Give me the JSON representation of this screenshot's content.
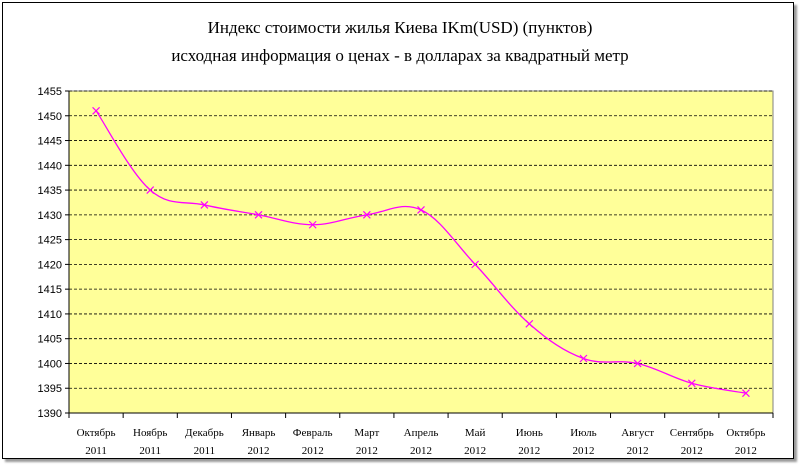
{
  "chart_data": {
    "type": "line",
    "title_lines": [
      "Индекс стоимости жилья Киева  IKm(USD)  (пунктов)",
      "исходная  информация о ценах -  в долларах за квадратный метр"
    ],
    "categories": [
      [
        "Октябрь",
        "2011"
      ],
      [
        "Ноябрь",
        "2011"
      ],
      [
        "Декабрь",
        "2011"
      ],
      [
        "Январь",
        "2012"
      ],
      [
        "Февраль",
        "2012"
      ],
      [
        "Март",
        "2012"
      ],
      [
        "Апрель",
        "2012"
      ],
      [
        "Май",
        "2012"
      ],
      [
        "Июнь",
        "2012"
      ],
      [
        "Июль",
        "2012"
      ],
      [
        "Август",
        "2012"
      ],
      [
        "Сентябрь",
        "2012"
      ],
      [
        "Октябрь",
        "2012"
      ]
    ],
    "series": [
      {
        "values": [
          1451,
          1435,
          1432,
          1430,
          1428,
          1430,
          1431,
          1420,
          1408,
          1401,
          1400,
          1396,
          1394
        ]
      }
    ],
    "ylim": [
      1390,
      1455
    ],
    "ytick_step": 5,
    "grid": "horizontal-dashed",
    "legend": "none",
    "colors": {
      "line": "#ff00ff",
      "plot_background": "#ffff99",
      "grid": "#000000"
    }
  }
}
